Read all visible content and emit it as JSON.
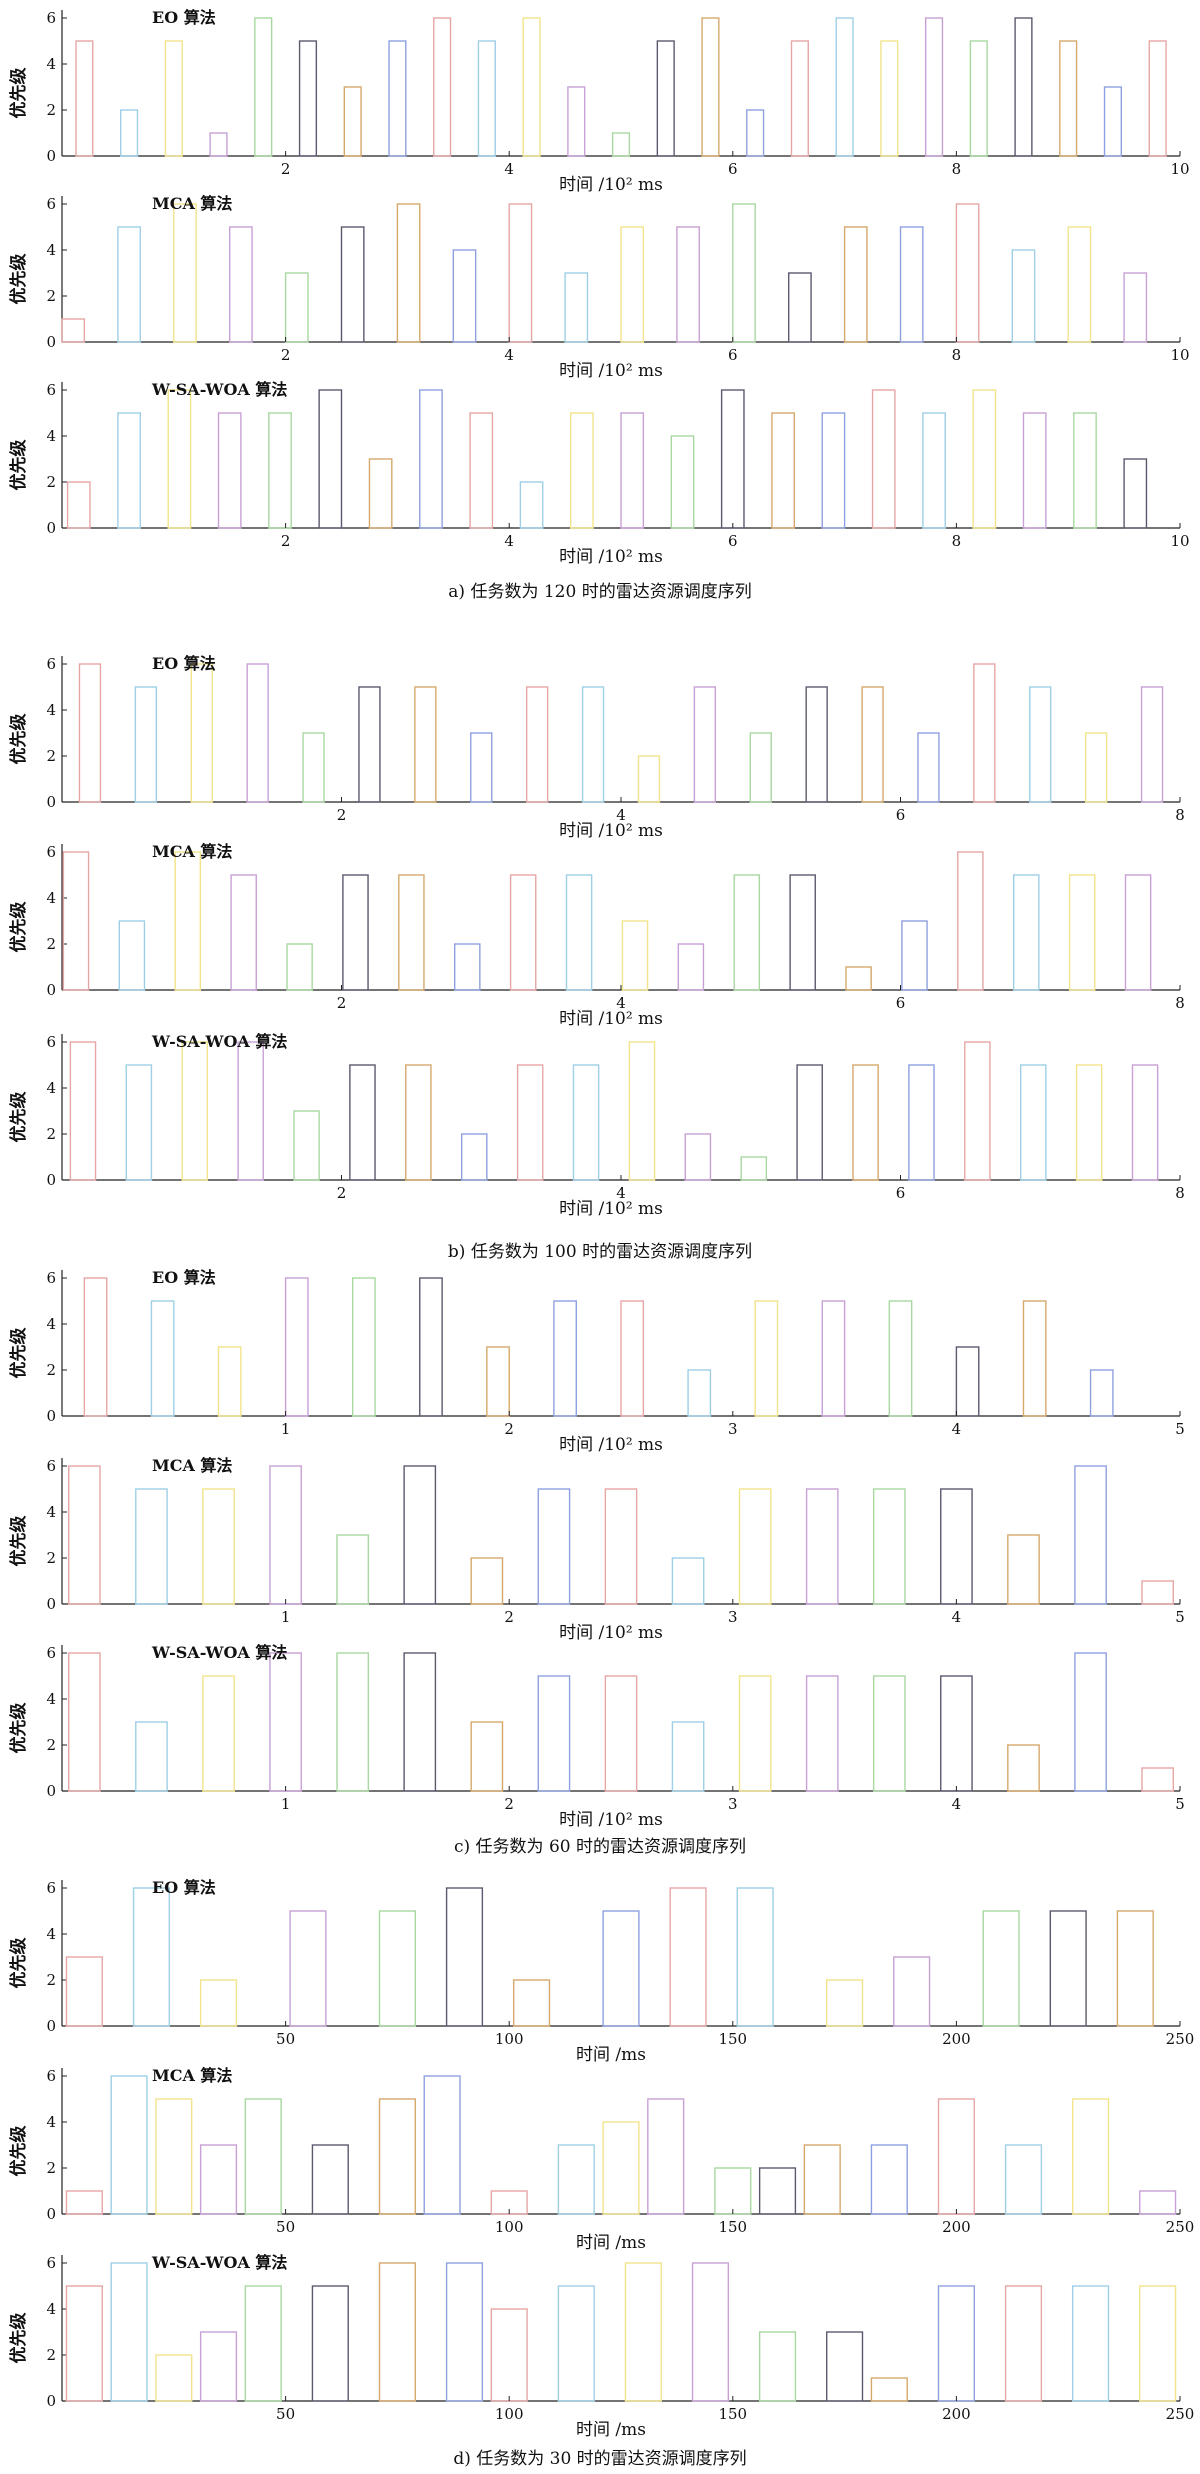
{
  "figure": {
    "groups": [
      {
        "caption": "a)    任务数为 120 时的雷达资源调度序列",
        "panels": [
          {
            "title": "EO 算法",
            "ylabel": "优先级",
            "xlabel": "时间 /10² ms"
          },
          {
            "title": "MCA 算法",
            "ylabel": "优先级",
            "xlabel": "时间 /10² ms"
          },
          {
            "title": "W-SA-WOA 算法",
            "ylabel": "优先级",
            "xlabel": "时间 /10² ms"
          }
        ]
      },
      {
        "caption": "b)    任务数为 100 时的雷达资源调度序列",
        "panels": [
          {
            "title": "EO 算法",
            "ylabel": "优先级",
            "xlabel": "时间 /10² ms"
          },
          {
            "title": "MCA 算法",
            "ylabel": "优先级",
            "xlabel": "时间 /10² ms"
          },
          {
            "title": "W-SA-WOA 算法",
            "ylabel": "优先级",
            "xlabel": "时间 /10² ms"
          }
        ]
      },
      {
        "caption": "c)    任务数为 60 时的雷达资源调度序列",
        "panels": [
          {
            "title": "EO 算法",
            "ylabel": "优先级",
            "xlabel": "时间 /10² ms"
          },
          {
            "title": "MCA 算法",
            "ylabel": "优先级",
            "xlabel": "时间 /10² ms"
          },
          {
            "title": "W-SA-WOA 算法",
            "ylabel": "优先级",
            "xlabel": "时间 /10² ms"
          }
        ]
      },
      {
        "caption": "d)    任务数为 30 时的雷达资源调度序列",
        "panels": [
          {
            "title": "EO 算法",
            "ylabel": "优先级",
            "xlabel": "时间 /ms"
          },
          {
            "title": "MCA 算法",
            "ylabel": "优先级",
            "xlabel": "时间 /ms"
          },
          {
            "title": "W-SA-WOA 算法",
            "ylabel": "优先级",
            "xlabel": "时间 /ms"
          }
        ]
      }
    ]
  },
  "chart_data": [
    {
      "type": "bar",
      "title": "EO 算法",
      "caption": "a) 任务数为 120 时",
      "xlabel": "时间 /10² ms",
      "ylabel": "优先级",
      "xlim": [
        0,
        10
      ],
      "ylim": [
        0,
        6
      ],
      "xticks": [
        2,
        4,
        6,
        8,
        10
      ],
      "yticks": [
        0,
        2,
        4,
        6
      ],
      "x": [
        0.2,
        0.6,
        1.0,
        1.4,
        1.8,
        2.2,
        2.6,
        3.0,
        3.4,
        3.8,
        4.2,
        4.6,
        5.0,
        5.4,
        5.8,
        6.2,
        6.6,
        7.0,
        7.4,
        7.8,
        8.2,
        8.6,
        9.0,
        9.4,
        9.8
      ],
      "values": [
        5,
        2,
        5,
        1,
        6,
        5,
        3,
        5,
        6,
        5,
        6,
        3,
        1,
        5,
        6,
        2,
        5,
        6,
        5,
        6,
        5,
        6,
        5,
        3,
        5
      ],
      "bar_width": 0.15
    },
    {
      "type": "bar",
      "title": "MCA 算法",
      "caption": "a) 任务数为 120 时",
      "xlabel": "时间 /10² ms",
      "ylabel": "优先级",
      "xlim": [
        0,
        10
      ],
      "ylim": [
        0,
        6
      ],
      "xticks": [
        2,
        4,
        6,
        8,
        10
      ],
      "yticks": [
        0,
        2,
        4,
        6
      ],
      "x": [
        0.1,
        0.6,
        1.1,
        1.6,
        2.1,
        2.6,
        3.1,
        3.6,
        4.1,
        4.6,
        5.1,
        5.6,
        6.1,
        6.6,
        7.1,
        7.6,
        8.1,
        8.6,
        9.1,
        9.6
      ],
      "values": [
        1,
        5,
        6,
        5,
        3,
        5,
        6,
        4,
        6,
        3,
        5,
        5,
        6,
        3,
        5,
        5,
        6,
        4,
        5,
        3
      ],
      "bar_width": 0.2
    },
    {
      "type": "bar",
      "title": "W-SA-WOA 算法",
      "caption": "a) 任务数为 120 时",
      "xlabel": "时间 /10² ms",
      "ylabel": "优先级",
      "xlim": [
        0,
        10
      ],
      "ylim": [
        0,
        6
      ],
      "xticks": [
        2,
        4,
        6,
        8,
        10
      ],
      "yticks": [
        0,
        2,
        4,
        6
      ],
      "x": [
        0.15,
        0.6,
        1.05,
        1.5,
        1.95,
        2.4,
        2.85,
        3.3,
        3.75,
        4.2,
        4.65,
        5.1,
        5.55,
        6.0,
        6.45,
        6.9,
        7.35,
        7.8,
        8.25,
        8.7,
        9.15,
        9.6
      ],
      "values": [
        2,
        5,
        6,
        5,
        5,
        6,
        3,
        6,
        5,
        2,
        5,
        5,
        4,
        6,
        5,
        5,
        6,
        5,
        6,
        5,
        5,
        3
      ],
      "bar_width": 0.2
    },
    {
      "type": "bar",
      "title": "EO 算法",
      "caption": "b) 任务数为 100 时",
      "xlabel": "时间 /10² ms",
      "ylabel": "优先级",
      "xlim": [
        0,
        8
      ],
      "ylim": [
        0,
        6
      ],
      "xticks": [
        2,
        4,
        6,
        8
      ],
      "yticks": [
        0,
        2,
        4,
        6
      ],
      "x": [
        0.2,
        0.6,
        1.0,
        1.4,
        1.8,
        2.2,
        2.6,
        3.0,
        3.4,
        3.8,
        4.2,
        4.6,
        5.0,
        5.4,
        5.8,
        6.2,
        6.6,
        7.0,
        7.4,
        7.8
      ],
      "values": [
        6,
        5,
        6,
        6,
        3,
        5,
        5,
        3,
        5,
        5,
        2,
        5,
        3,
        5,
        5,
        3,
        6,
        5,
        3,
        5
      ],
      "bar_width": 0.15
    },
    {
      "type": "bar",
      "title": "MCA 算法",
      "caption": "b) 任务数为 100 时",
      "xlabel": "时间 /10² ms",
      "ylabel": "优先级",
      "xlim": [
        0,
        8
      ],
      "ylim": [
        0,
        6
      ],
      "xticks": [
        2,
        4,
        6,
        8
      ],
      "yticks": [
        0,
        2,
        4,
        6
      ],
      "x": [
        0.1,
        0.5,
        0.9,
        1.3,
        1.7,
        2.1,
        2.5,
        2.9,
        3.3,
        3.7,
        4.1,
        4.5,
        4.9,
        5.3,
        5.7,
        6.1,
        6.5,
        6.9,
        7.3,
        7.7
      ],
      "values": [
        6,
        3,
        6,
        5,
        2,
        5,
        5,
        2,
        5,
        5,
        3,
        2,
        5,
        5,
        1,
        3,
        6,
        5,
        5,
        5
      ],
      "bar_width": 0.18
    },
    {
      "type": "bar",
      "title": "W-SA-WOA 算法",
      "caption": "b) 任务数为 100 时",
      "xlabel": "时间 /10² ms",
      "ylabel": "优先级",
      "xlim": [
        0,
        8
      ],
      "ylim": [
        0,
        6
      ],
      "xticks": [
        2,
        4,
        6,
        8
      ],
      "yticks": [
        0,
        2,
        4,
        6
      ],
      "x": [
        0.15,
        0.55,
        0.95,
        1.35,
        1.75,
        2.15,
        2.55,
        2.95,
        3.35,
        3.75,
        4.15,
        4.55,
        4.95,
        5.35,
        5.75,
        6.15,
        6.55,
        6.95,
        7.35,
        7.75
      ],
      "values": [
        6,
        5,
        6,
        6,
        3,
        5,
        5,
        2,
        5,
        5,
        6,
        2,
        1,
        5,
        5,
        5,
        6,
        5,
        5,
        5
      ],
      "bar_width": 0.18
    },
    {
      "type": "bar",
      "title": "EO 算法",
      "caption": "c) 任务数为 60 时",
      "xlabel": "时间 /10² ms",
      "ylabel": "优先级",
      "xlim": [
        0,
        5
      ],
      "ylim": [
        0,
        6
      ],
      "xticks": [
        1,
        2,
        3,
        4,
        5
      ],
      "yticks": [
        0,
        2,
        4,
        6
      ],
      "x": [
        0.15,
        0.45,
        0.75,
        1.05,
        1.35,
        1.65,
        1.95,
        2.25,
        2.55,
        2.85,
        3.15,
        3.45,
        3.75,
        4.05,
        4.35,
        4.65
      ],
      "values": [
        6,
        5,
        3,
        6,
        6,
        6,
        3,
        5,
        5,
        2,
        5,
        5,
        5,
        3,
        5,
        2
      ],
      "bar_width": 0.1
    },
    {
      "type": "bar",
      "title": "MCA 算法",
      "caption": "c) 任务数为 60 时",
      "xlabel": "时间 /10² ms",
      "ylabel": "优先级",
      "xlim": [
        0,
        5
      ],
      "ylim": [
        0,
        6
      ],
      "xticks": [
        1,
        2,
        3,
        4,
        5
      ],
      "yticks": [
        0,
        2,
        4,
        6
      ],
      "x": [
        0.1,
        0.4,
        0.7,
        1.0,
        1.3,
        1.6,
        1.9,
        2.2,
        2.5,
        2.8,
        3.1,
        3.4,
        3.7,
        4.0,
        4.3,
        4.6,
        4.9
      ],
      "values": [
        6,
        5,
        5,
        6,
        3,
        6,
        2,
        5,
        5,
        2,
        5,
        5,
        5,
        5,
        3,
        6,
        1
      ],
      "bar_width": 0.14
    },
    {
      "type": "bar",
      "title": "W-SA-WOA 算法",
      "caption": "c) 任务数为 60 时",
      "xlabel": "时间 /10² ms",
      "ylabel": "优先级",
      "xlim": [
        0,
        5
      ],
      "ylim": [
        0,
        6
      ],
      "xticks": [
        1,
        2,
        3,
        4,
        5
      ],
      "yticks": [
        0,
        2,
        4,
        6
      ],
      "x": [
        0.1,
        0.4,
        0.7,
        1.0,
        1.3,
        1.6,
        1.9,
        2.2,
        2.5,
        2.8,
        3.1,
        3.4,
        3.7,
        4.0,
        4.3,
        4.6,
        4.9
      ],
      "values": [
        6,
        3,
        5,
        6,
        6,
        6,
        3,
        5,
        5,
        3,
        5,
        5,
        5,
        5,
        2,
        6,
        1
      ],
      "bar_width": 0.14
    },
    {
      "type": "bar",
      "title": "EO 算法",
      "caption": "d) 任务数为 30 时",
      "xlabel": "时间 /ms",
      "ylabel": "优先级",
      "xlim": [
        0,
        250
      ],
      "ylim": [
        0,
        6
      ],
      "xticks": [
        50,
        100,
        150,
        200,
        250
      ],
      "yticks": [
        0,
        2,
        4,
        6
      ],
      "x": [
        5,
        20,
        35,
        55,
        75,
        90,
        105,
        125,
        140,
        155,
        175,
        190,
        210,
        225,
        240
      ],
      "values": [
        3,
        6,
        2,
        5,
        5,
        6,
        2,
        5,
        6,
        6,
        2,
        3,
        5,
        5,
        5
      ],
      "bar_width": 8
    },
    {
      "type": "bar",
      "title": "MCA 算法",
      "caption": "d) 任务数为 30 时",
      "xlabel": "时间 /ms",
      "ylabel": "优先级",
      "xlim": [
        0,
        250
      ],
      "ylim": [
        0,
        6
      ],
      "xticks": [
        50,
        100,
        150,
        200,
        250
      ],
      "yticks": [
        0,
        2,
        4,
        6
      ],
      "x": [
        5,
        15,
        25,
        35,
        45,
        60,
        75,
        85,
        100,
        115,
        125,
        135,
        150,
        160,
        170,
        185,
        200,
        215,
        230,
        245
      ],
      "values": [
        1,
        6,
        5,
        3,
        5,
        3,
        5,
        6,
        1,
        3,
        4,
        5,
        2,
        2,
        3,
        3,
        5,
        3,
        5,
        1
      ],
      "bar_width": 8
    },
    {
      "type": "bar",
      "title": "W-SA-WOA 算法",
      "caption": "d) 任务数为 30 时",
      "xlabel": "时间 /ms",
      "ylabel": "优先级",
      "xlim": [
        0,
        250
      ],
      "ylim": [
        0,
        6
      ],
      "xticks": [
        50,
        100,
        150,
        200,
        250
      ],
      "yticks": [
        0,
        2,
        4,
        6
      ],
      "x": [
        5,
        15,
        25,
        35,
        45,
        60,
        75,
        90,
        100,
        115,
        130,
        145,
        160,
        175,
        185,
        200,
        215,
        230,
        245
      ],
      "values": [
        5,
        6,
        2,
        3,
        5,
        5,
        6,
        6,
        4,
        5,
        6,
        6,
        3,
        3,
        1,
        5,
        5,
        5,
        5
      ],
      "bar_width": 8
    }
  ],
  "palette": [
    "#e6a6a6",
    "#9ecfe6",
    "#f2e48a",
    "#c9a0d6",
    "#a8d8a0",
    "#5a5a6e",
    "#d6a86c",
    "#8fa0e0"
  ]
}
